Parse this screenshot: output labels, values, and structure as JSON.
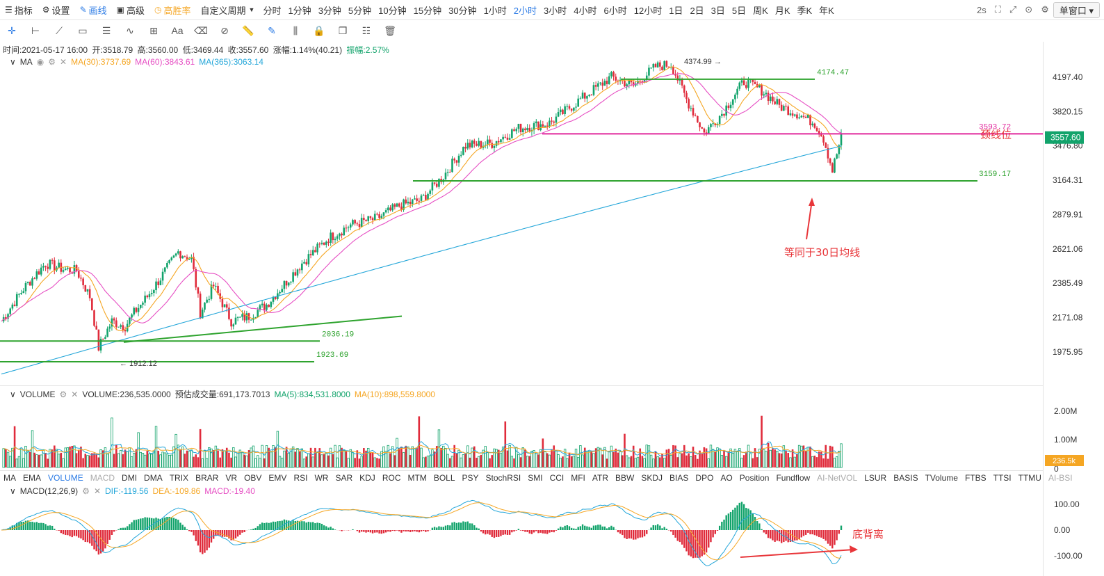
{
  "topbar": {
    "buttons": [
      {
        "id": "indicators",
        "icon": "indicator-icon",
        "label": "指标"
      },
      {
        "id": "settings",
        "icon": "gear-icon",
        "label": "设置"
      },
      {
        "id": "draw",
        "icon": "pen-icon",
        "label": "画线",
        "active": true
      },
      {
        "id": "advanced",
        "icon": "box-icon",
        "label": "高级"
      },
      {
        "id": "win-rate",
        "icon": "clock-icon",
        "label": "高胜率",
        "accent": true
      }
    ],
    "custom_period": "自定义周期",
    "periods": [
      "分时",
      "1分钟",
      "3分钟",
      "5分钟",
      "10分钟",
      "15分钟",
      "30分钟",
      "1小时",
      "2小时",
      "3小时",
      "4小时",
      "6小时",
      "12小时",
      "1日",
      "2日",
      "3日",
      "5日",
      "周K",
      "月K",
      "季K",
      "年K"
    ],
    "active_period": "2小时",
    "refresh": "2s",
    "window_mode": "单窗口"
  },
  "info_bar": {
    "time": "时间:2021-05-17 16:00",
    "open": "开:3518.79",
    "high": "高:3560.00",
    "low": "低:3469.44",
    "close": "收:3557.60",
    "change": "涨幅:1.14%(40.21)",
    "amplitude": "振幅:2.57%"
  },
  "ma_legend": {
    "name": "MA",
    "ma30": "MA(30):3737.69",
    "ma60": "MA(60):3843.61",
    "ma365": "MA(365):3063.14"
  },
  "vol_legend": {
    "name": "VOLUME",
    "vol": "VOLUME:236,535.0000",
    "est": "预估成交量:691,173.7013",
    "ma5": "MA(5):834,531.8000",
    "ma10": "MA(10):898,559.8000"
  },
  "macd_legend": {
    "name": "MACD(12,26,9)",
    "dif": "DIF:-119.56",
    "dea": "DEA:-109.86",
    "macd": "MACD:-19.40"
  },
  "indicator_tabs": [
    "MA",
    "EMA",
    "VOLUME",
    "MACD",
    "DMI",
    "DMA",
    "TRIX",
    "BRAR",
    "VR",
    "OBV",
    "EMV",
    "RSI",
    "WR",
    "SAR",
    "KDJ",
    "ROC",
    "MTM",
    "BOLL",
    "PSY",
    "StochRSI",
    "SMI",
    "CCI",
    "MFI",
    "ATR",
    "BBW",
    "SKDJ",
    "BIAS",
    "DPO",
    "AO",
    "Position",
    "Fundflow",
    "AI-NetVOL",
    "LSUR",
    "BASIS",
    "TVolume",
    "FTBS",
    "TTSI",
    "TTMU",
    "AI-BSI"
  ],
  "active_tab": "VOLUME",
  "colors": {
    "up": "#12a36b",
    "down": "#e02b3b",
    "accent": "#2c7be5",
    "ma30": "#f5a623",
    "ma60": "#e64ec3",
    "ma365": "#23a6d9",
    "line_green": "#2ea32e",
    "line_pink": "#e0279c",
    "anno": "#e8363a"
  },
  "chart_data": {
    "type": "candlestick",
    "price_axis_ticks": [
      4197.4,
      3820.15,
      3476.8,
      3164.31,
      2879.91,
      2621.06,
      2385.49,
      2171.08,
      1975.95
    ],
    "price_range": [
      1800,
      4500
    ],
    "last_price": "3557.60",
    "high_label": "4374.99",
    "low_label": "1912.12",
    "horizontal_lines": [
      {
        "label": "4174.47",
        "value": 4174.47,
        "color": "green"
      },
      {
        "label": "3593.72",
        "value": 3593.72,
        "color": "pink",
        "note": "颈线位"
      },
      {
        "label": "3159.17",
        "value": 3159.17,
        "color": "green"
      },
      {
        "label": "2036.19",
        "value": 2036.19,
        "color": "green"
      },
      {
        "label": "1923.69",
        "value": 1923.69,
        "color": "green"
      }
    ],
    "annotations": [
      "等同于30日均线",
      "底背离"
    ],
    "volume_axis_ticks": [
      "2.00M",
      "1.00M",
      "0"
    ],
    "volume_last": "236.5k",
    "macd_axis_ticks": [
      "100.00",
      "0.00",
      "-100.00"
    ]
  }
}
